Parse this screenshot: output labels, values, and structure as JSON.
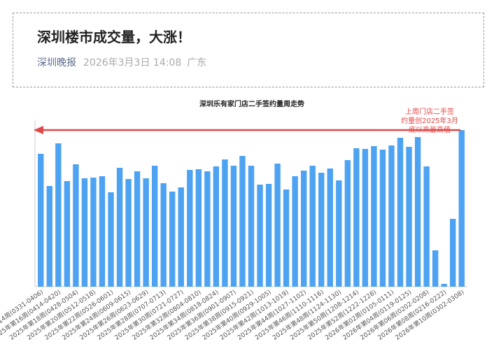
{
  "header": {
    "title": "深圳楼市成交量，大涨！",
    "source": "深圳晚报",
    "date": "2026年3月3日 14:08",
    "region": "广东"
  },
  "chart_data": {
    "type": "bar",
    "title": "深圳乐有家门店二手签约量周走势",
    "categories": [
      "2025年第14周(0331-0406)",
      null,
      "2025年第16周(0414-0420)",
      null,
      "2025年第18周(0428-0504)",
      null,
      "2025年第20周(0512-0518)",
      null,
      "2025年第22周(0526-0601)",
      null,
      "2025年第24周(0609-0615)",
      null,
      "2025年第26周(0623-0629)",
      null,
      "2025年第28周(0707-0713)",
      null,
      "2025年第30周(0721-0727)",
      null,
      "2025年第32周(0804-0810)",
      null,
      "2025年第34周(0818-0824)",
      null,
      "2025年第36周(0901-0907)",
      null,
      "2025年第38周(0915-0921)",
      null,
      "2025年第40周(0929-1005)",
      null,
      "2025年第42周(1013-1019)",
      null,
      "2025年第44周(1027-1102)",
      null,
      "2025年第46周(1110-1116)",
      null,
      "2025年第48周(1124-1130)",
      null,
      "2025年第50周(1208-1214)",
      null,
      "2025年第52周(1222-1228)",
      null,
      "2026年第02周(0105-0111)",
      null,
      "2026年第04周(0119-0125)",
      null,
      "2026年第06周(0202-0208)",
      null,
      "2026年第08周(0216-0222)",
      null,
      "2026年第10周(0302-0308)"
    ],
    "values": [
      190,
      144,
      205,
      151,
      175,
      155,
      156,
      158,
      135,
      170,
      154,
      165,
      155,
      173,
      148,
      136,
      142,
      167,
      168,
      165,
      172,
      182,
      173,
      187,
      173,
      146,
      147,
      176,
      139,
      158,
      166,
      173,
      163,
      169,
      152,
      181,
      198,
      197,
      201,
      196,
      202,
      213,
      200,
      214,
      172,
      52,
      4,
      97,
      224
    ],
    "color": "#4da3f2",
    "ylim": [
      0,
      230
    ],
    "annotation": [
      "上周门店二手签",
      "约量创2025年3月",
      "底以来最高值"
    ]
  }
}
